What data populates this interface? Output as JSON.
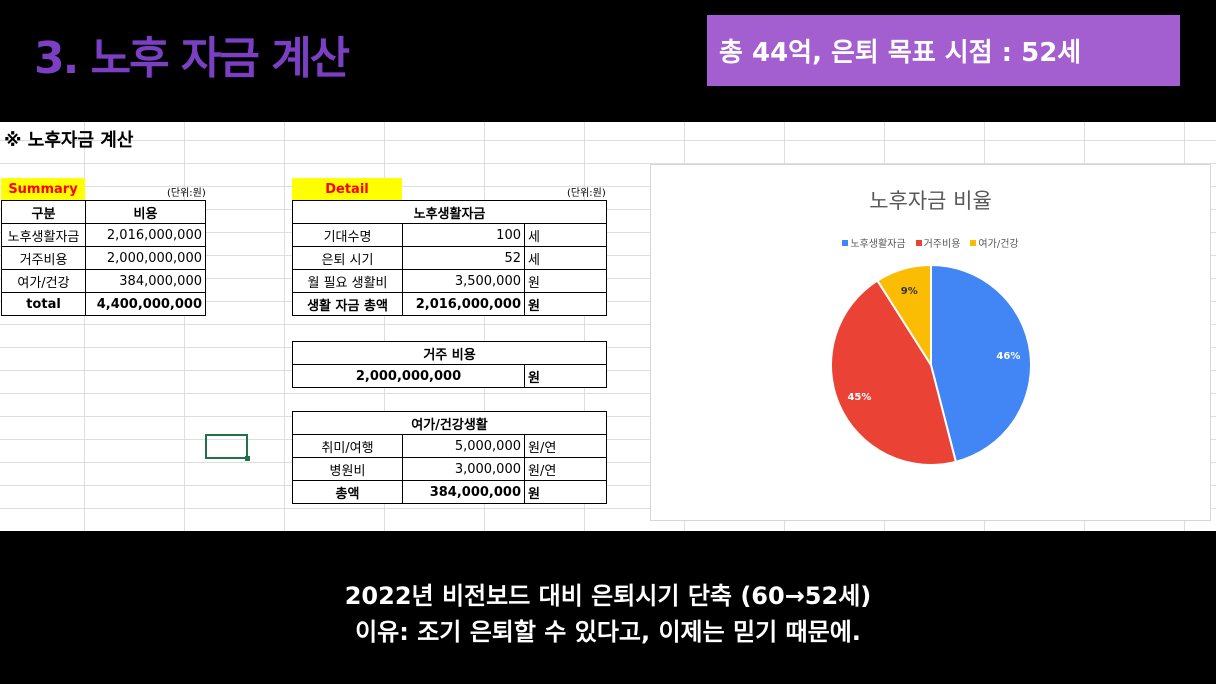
{
  "slide": {
    "title": "3. 노후 자금 계산",
    "banner": "총 44억, 은퇴 목표 시점  : 52세"
  },
  "sheet": {
    "title": "※ 노후자금 계산",
    "summary": {
      "tag": "Summary",
      "unit": "(단위:원)",
      "headers": [
        "구분",
        "비용"
      ],
      "rows": [
        {
          "label": "노후생활자금",
          "value": "2,016,000,000"
        },
        {
          "label": "거주비용",
          "value": "2,000,000,000"
        },
        {
          "label": "여가/건강",
          "value": "384,000,000"
        }
      ],
      "total_label": "total",
      "total_value": "4,400,000,000"
    },
    "detail": {
      "tag": "Detail",
      "unit": "(단위:원)",
      "living": {
        "header": "노후생활자금",
        "rows": [
          {
            "label": "기대수명",
            "value": "100",
            "unit": "세"
          },
          {
            "label": "은퇴 시기",
            "value": "52",
            "unit": "세"
          },
          {
            "label": "월 필요 생활비",
            "value": "3,500,000",
            "unit": "원"
          }
        ],
        "total_label": "생활 자금 총액",
        "total_value": "2,016,000,000",
        "total_unit": "원"
      },
      "housing": {
        "header": "거주 비용",
        "value": "2,000,000,000",
        "unit": "원"
      },
      "leisure": {
        "header": "여가/건강생활",
        "rows": [
          {
            "label": "취미/여행",
            "value": "5,000,000",
            "unit": "원/연"
          },
          {
            "label": "병원비",
            "value": "3,000,000",
            "unit": "원/연"
          }
        ],
        "total_label": "총액",
        "total_value": "384,000,000",
        "total_unit": "원"
      }
    }
  },
  "chart_data": {
    "type": "pie",
    "title": "노후자금 비율",
    "categories": [
      "노후생활자금",
      "거주비용",
      "여가/건강"
    ],
    "values": [
      46,
      45,
      9
    ],
    "labels": [
      "46%",
      "45%",
      "9%"
    ],
    "colors": [
      "#4285f4",
      "#ea4335",
      "#fbbc04"
    ],
    "legend": "top"
  },
  "caption": {
    "line1": "2022년 비전보드 대비 은퇴시기 단축 (60→52세)",
    "line2": "이유: 조기 은퇴할 수 있다고, 이제는 믿기 때문에."
  }
}
